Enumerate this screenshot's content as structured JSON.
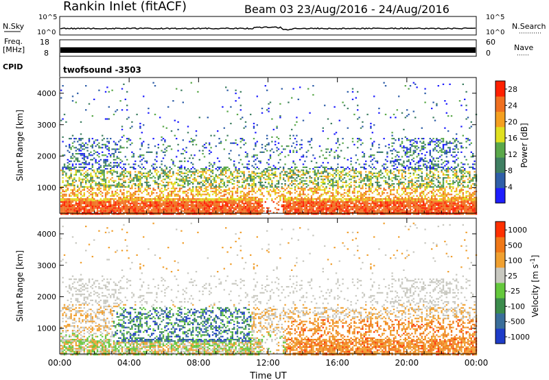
{
  "header": {
    "title": "Rankin Inlet (fitACF)",
    "beam_and_dates": "Beam 03 23/Aug/2016 - 24/Aug/2016"
  },
  "panel_labels": {
    "nsky": "N.Sky",
    "nsky_low": "10^0",
    "nsky_high": "10^5",
    "nsearch": "N.Search",
    "nsearch_low": "10^0",
    "nsearch_high": "10^5",
    "freq": "Freq.",
    "freq_unit": "[MHz]",
    "freq_low": "8",
    "freq_high": "18",
    "nave": "Nave",
    "nave_low": "0",
    "nave_high": "60",
    "cpid": "CPID",
    "cpid_value": "twofsound -3503"
  },
  "chart_data": [
    {
      "type": "heatmap",
      "name": "power",
      "xlabel": "",
      "ylabel": "Slant Range [km]",
      "xlim": [
        0,
        24
      ],
      "ylim": [
        180,
        4500
      ],
      "yticks": [
        1000,
        2000,
        3000,
        4000
      ],
      "xticks": [
        "00:00",
        "04:00",
        "08:00",
        "12:00",
        "16:00",
        "20:00",
        "00:00"
      ],
      "colorbar": {
        "label": "Power [dB]",
        "ticks": [
          4,
          8,
          12,
          16,
          20,
          24,
          28
        ],
        "range": [
          0,
          30
        ],
        "colors": [
          "#1e1eff",
          "#2f5fa8",
          "#3f7f62",
          "#5aa84a",
          "#e0e020",
          "#f5a020",
          "#f07020",
          "#ff2000"
        ]
      }
    },
    {
      "type": "heatmap",
      "name": "velocity",
      "xlabel": "Time UT",
      "ylabel": "Slant Range [km]",
      "xlim": [
        0,
        24
      ],
      "ylim": [
        180,
        4500
      ],
      "yticks": [
        1000,
        2000,
        3000,
        4000
      ],
      "xticks": [
        "00:00",
        "04:00",
        "08:00",
        "12:00",
        "16:00",
        "20:00",
        "00:00"
      ],
      "colorbar": {
        "label": "Velocity [m s^-1]",
        "ticks": [
          "1000",
          "500",
          "100",
          "25",
          "-25",
          "-100",
          "-500",
          "-1000"
        ],
        "colors": [
          "#1e3cc8",
          "#3a6e9a",
          "#3c8c4c",
          "#64c83c",
          "#c8c8c0",
          "#f0a030",
          "#f07818",
          "#ff3000"
        ]
      }
    }
  ],
  "colors": {
    "axis": "#000000",
    "background": "#ffffff"
  }
}
